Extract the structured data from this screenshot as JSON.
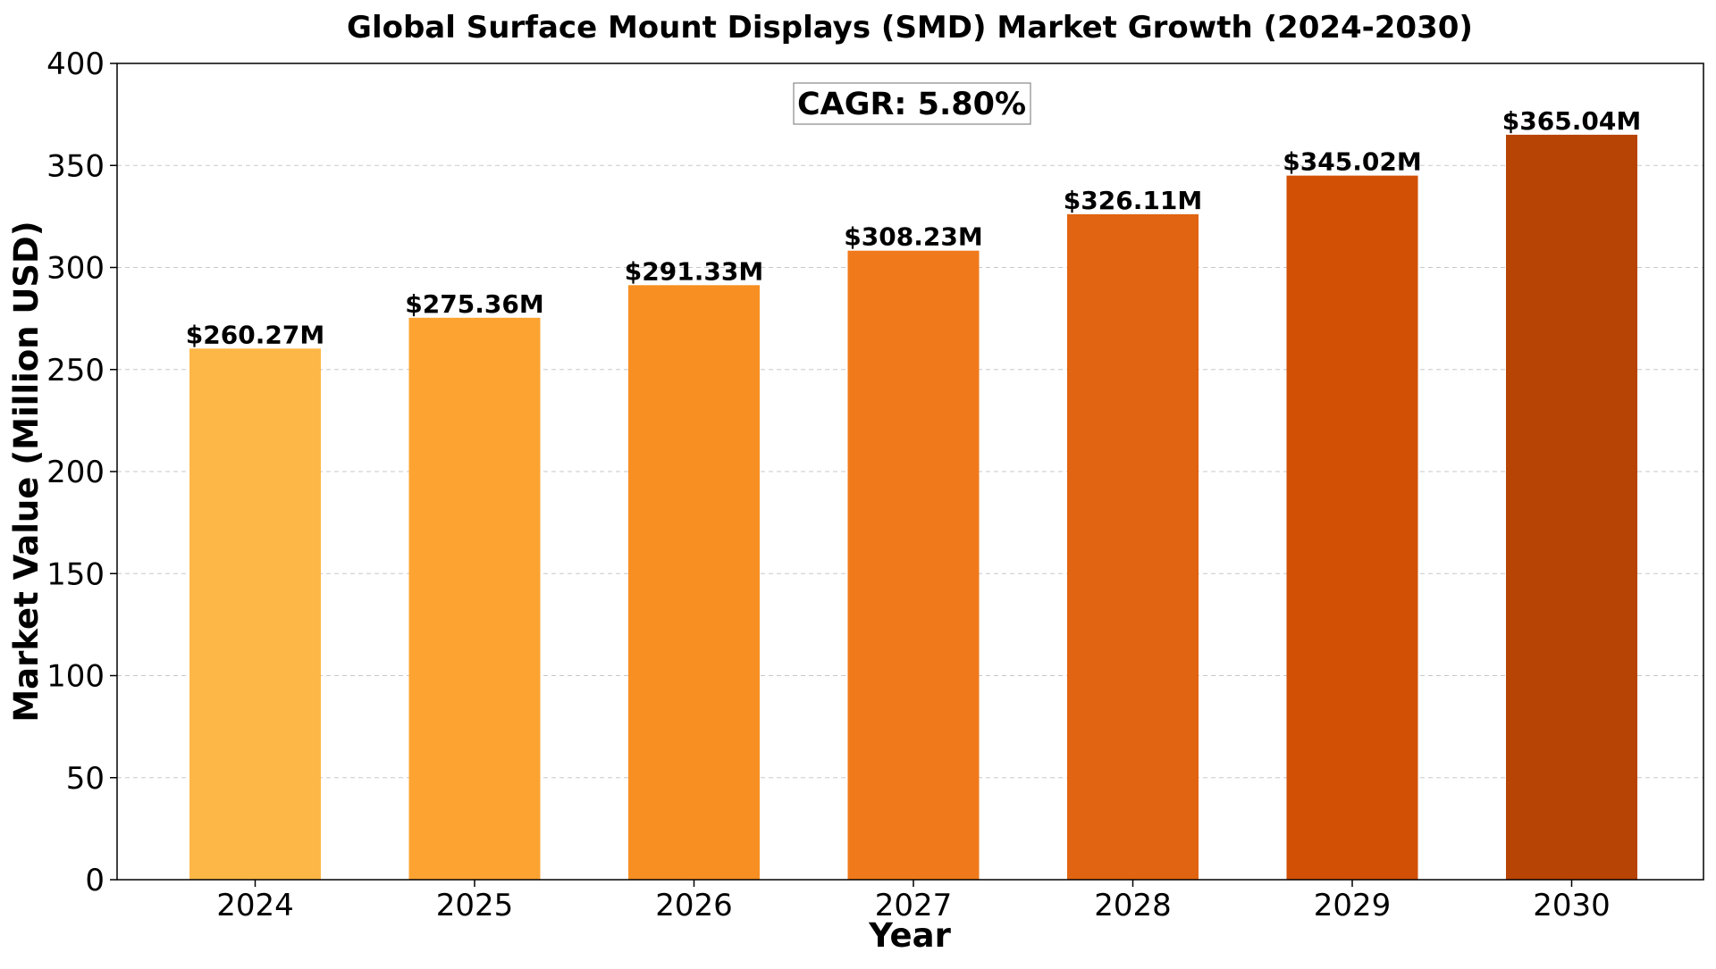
{
  "chart_data": {
    "type": "bar",
    "title": "Global Surface Mount Displays (SMD) Market Growth (2024-2030)",
    "xlabel": "Year",
    "ylabel": "Market Value (Million USD)",
    "categories": [
      "2024",
      "2025",
      "2026",
      "2027",
      "2028",
      "2029",
      "2030"
    ],
    "values": [
      260.27,
      275.36,
      291.33,
      308.23,
      326.11,
      345.02,
      365.04
    ],
    "data_labels": [
      "$260.27M",
      "$275.36M",
      "$291.33M",
      "$308.23M",
      "$326.11M",
      "$345.02M",
      "$365.04M"
    ],
    "colors": [
      "#FDB747",
      "#FCA332",
      "#F78F23",
      "#F07A1B",
      "#E06411",
      "#D15006",
      "#B74304"
    ],
    "ylim": [
      0,
      400
    ],
    "yticks": [
      0,
      50,
      100,
      150,
      200,
      250,
      300,
      350,
      400
    ],
    "grid": "horizontal dashed",
    "annotation": "CAGR: 5.80%"
  }
}
